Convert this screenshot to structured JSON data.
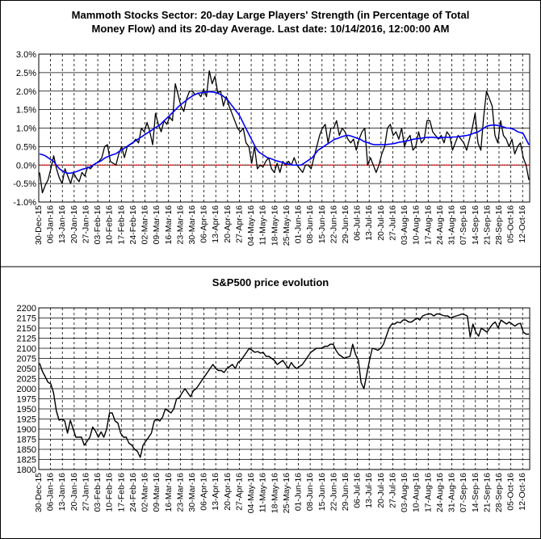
{
  "chart_data": [
    {
      "type": "line",
      "title_line1": "Mammoth Stocks Sector: 20-day Large Players' Strength (in Percentage of Total",
      "title_line2": "Money Flow) and its 20-day Average. Last date: 10/14/2016, 12:00:00 AM",
      "ylim": [
        -1.0,
        3.0
      ],
      "ytick_labels": [
        "3.0%",
        "2.5%",
        "2.0%",
        "1.5%",
        "1.0%",
        "0.5%",
        "0.0%",
        "-0.5%",
        "-1.0%"
      ],
      "xtick_labels": [
        "30-Dec-15",
        "06-Jan-16",
        "13-Jan-16",
        "20-Jan-16",
        "27-Jan-16",
        "03-Feb-16",
        "10-Feb-16",
        "17-Feb-16",
        "24-Feb-16",
        "02-Mar-16",
        "09-Mar-16",
        "16-Mar-16",
        "23-Mar-16",
        "30-Mar-16",
        "06-Apr-16",
        "13-Apr-16",
        "20-Apr-16",
        "27-Apr-16",
        "04-May-16",
        "11-May-16",
        "18-May-16",
        "25-May-16",
        "01-Jun-16",
        "08-Jun-16",
        "15-Jun-16",
        "22-Jun-16",
        "29-Jun-16",
        "06-Jul-16",
        "13-Jul-16",
        "20-Jul-16",
        "27-Jul-16",
        "03-Aug-16",
        "10-Aug-16",
        "17-Aug-16",
        "24-Aug-16",
        "31-Aug-16",
        "07-Sep-16",
        "14-Sep-16",
        "21-Sep-16",
        "28-Sep-16",
        "05-Oct-16",
        "12-Oct-16"
      ],
      "reference_line": 0.0,
      "series": [
        {
          "color": "#000000",
          "values": [
            -0.2,
            -0.75,
            -0.55,
            -0.4,
            -0.1,
            0.25,
            -0.1,
            -0.35,
            -0.5,
            -0.1,
            -0.3,
            -0.5,
            -0.2,
            -0.35,
            -0.45,
            -0.2,
            -0.3,
            -0.05,
            -0.1,
            0.0,
            0.05,
            0.1,
            0.2,
            0.5,
            0.55,
            0.1,
            0.05,
            0.0,
            0.3,
            0.5,
            0.2,
            0.5,
            0.55,
            0.6,
            0.7,
            0.6,
            1.0,
            0.9,
            1.15,
            0.9,
            0.55,
            1.4,
            1.1,
            0.9,
            1.2,
            1.1,
            1.3,
            1.2,
            2.2,
            1.9,
            1.6,
            1.45,
            1.8,
            2.0,
            2.0,
            1.9,
            1.95,
            1.85,
            2.05,
            1.85,
            2.55,
            2.2,
            2.4,
            1.95,
            2.0,
            1.6,
            1.85,
            1.6,
            1.4,
            1.2,
            1.0,
            0.9,
            1.0,
            0.6,
            0.5,
            0.05,
            0.5,
            -0.1,
            0.0,
            -0.05,
            0.1,
            0.2,
            -0.1,
            -0.2,
            0.05,
            -0.2,
            0.1,
            0.0,
            0.1,
            0.0,
            0.2,
            0.0,
            -0.1,
            -0.2,
            0.0,
            0.0,
            -0.1,
            0.2,
            0.5,
            0.8,
            1.0,
            1.1,
            0.6,
            1.0,
            1.0,
            1.2,
            0.8,
            1.0,
            0.9,
            0.7,
            0.6,
            0.7,
            0.4,
            0.7,
            0.9,
            1.0,
            0.0,
            0.2,
            0.0,
            -0.2,
            0.0,
            0.3,
            0.5,
            1.0,
            1.1,
            0.8,
            0.9,
            0.7,
            1.0,
            0.5,
            0.7,
            0.8,
            0.4,
            0.5,
            0.9,
            0.6,
            0.7,
            1.2,
            1.2,
            0.9,
            0.8,
            0.7,
            0.8,
            0.6,
            0.9,
            0.8,
            0.4,
            0.6,
            0.8,
            0.7,
            0.6,
            0.4,
            0.7,
            1.0,
            1.4,
            0.6,
            0.4,
            1.3,
            2.0,
            1.8,
            1.6,
            0.8,
            0.6,
            1.2,
            0.8,
            0.7,
            0.5,
            0.7,
            0.3,
            0.5,
            0.6,
            0.2,
            0.0,
            -0.4
          ]
        },
        {
          "color": "#0000FF",
          "values": [
            0.3,
            0.28,
            0.25,
            0.2,
            0.15,
            0.1,
            0.0,
            -0.1,
            -0.15,
            -0.2,
            -0.22,
            -0.22,
            -0.2,
            -0.18,
            -0.15,
            -0.12,
            -0.1,
            -0.08,
            -0.05,
            0.0,
            0.05,
            0.08,
            0.12,
            0.18,
            0.22,
            0.25,
            0.28,
            0.3,
            0.35,
            0.4,
            0.45,
            0.5,
            0.55,
            0.6,
            0.65,
            0.7,
            0.75,
            0.8,
            0.85,
            0.9,
            0.95,
            1.0,
            1.05,
            1.1,
            1.18,
            1.25,
            1.32,
            1.4,
            1.47,
            1.55,
            1.62,
            1.68,
            1.74,
            1.8,
            1.85,
            1.9,
            1.93,
            1.95,
            1.96,
            1.97,
            1.98,
            1.98,
            1.97,
            1.95,
            1.92,
            1.88,
            1.82,
            1.75,
            1.65,
            1.55,
            1.45,
            1.35,
            1.2,
            1.05,
            0.9,
            0.75,
            0.6,
            0.45,
            0.35,
            0.3,
            0.25,
            0.2,
            0.18,
            0.15,
            0.12,
            0.1,
            0.08,
            0.05,
            0.03,
            0.02,
            0.0,
            0.0,
            0.0,
            0.0,
            0.05,
            0.1,
            0.15,
            0.2,
            0.3,
            0.4,
            0.45,
            0.5,
            0.55,
            0.6,
            0.65,
            0.7,
            0.72,
            0.75,
            0.78,
            0.8,
            0.8,
            0.78,
            0.75,
            0.72,
            0.7,
            0.65,
            0.62,
            0.6,
            0.57,
            0.55,
            0.55,
            0.55,
            0.55,
            0.55,
            0.56,
            0.57,
            0.58,
            0.6,
            0.62,
            0.63,
            0.65,
            0.66,
            0.68,
            0.7,
            0.71,
            0.72,
            0.73,
            0.74,
            0.75,
            0.75,
            0.75,
            0.74,
            0.74,
            0.74,
            0.75,
            0.75,
            0.75,
            0.76,
            0.76,
            0.77,
            0.78,
            0.79,
            0.8,
            0.82,
            0.85,
            0.88,
            0.9,
            0.95,
            1.0,
            1.05,
            1.07,
            1.08,
            1.08,
            1.07,
            1.05,
            1.03,
            1.0,
            1.0,
            0.98,
            0.95,
            0.9,
            0.88,
            0.85,
            0.7,
            0.55
          ]
        }
      ]
    },
    {
      "type": "line",
      "title": "S&P500 price evolution",
      "ylim": [
        1800,
        2200
      ],
      "ytick_labels": [
        "2200",
        "2175",
        "2150",
        "2125",
        "2100",
        "2075",
        "2050",
        "2025",
        "2000",
        "1975",
        "1950",
        "1925",
        "1900",
        "1875",
        "1850",
        "1825",
        "1800"
      ],
      "xtick_labels": [
        "30-Dec-15",
        "06-Jan-16",
        "13-Jan-16",
        "20-Jan-16",
        "27-Jan-16",
        "03-Feb-16",
        "10-Feb-16",
        "17-Feb-16",
        "24-Feb-16",
        "02-Mar-16",
        "09-Mar-16",
        "16-Mar-16",
        "23-Mar-16",
        "30-Mar-16",
        "06-Apr-16",
        "13-Apr-16",
        "20-Apr-16",
        "27-Apr-16",
        "04-May-16",
        "11-May-16",
        "18-May-16",
        "25-May-16",
        "01-Jun-16",
        "08-Jun-16",
        "15-Jun-16",
        "22-Jun-16",
        "29-Jun-16",
        "06-Jul-16",
        "13-Jul-16",
        "20-Jul-16",
        "27-Jul-16",
        "03-Aug-16",
        "10-Aug-16",
        "17-Aug-16",
        "24-Aug-16",
        "31-Aug-16",
        "07-Sep-16",
        "14-Sep-16",
        "21-Sep-16",
        "28-Sep-16",
        "05-Oct-16",
        "12-Oct-16"
      ],
      "series": [
        {
          "color": "#000000",
          "values": [
            2063,
            2043,
            2030,
            2016,
            2012,
            1990,
            1945,
            1922,
            1925,
            1920,
            1890,
            1922,
            1900,
            1880,
            1880,
            1880,
            1860,
            1870,
            1880,
            1905,
            1895,
            1880,
            1893,
            1880,
            1900,
            1940,
            1940,
            1920,
            1915,
            1890,
            1880,
            1880,
            1865,
            1860,
            1850,
            1845,
            1830,
            1860,
            1870,
            1880,
            1890,
            1920,
            1925,
            1920,
            1930,
            1950,
            1945,
            1940,
            1950,
            1975,
            1978,
            1990,
            2000,
            1990,
            1980,
            1995,
            2000,
            2010,
            2020,
            2030,
            2040,
            2050,
            2060,
            2050,
            2045,
            2045,
            2040,
            2050,
            2055,
            2060,
            2050,
            2065,
            2070,
            2080,
            2090,
            2100,
            2095,
            2090,
            2092,
            2088,
            2090,
            2080,
            2080,
            2075,
            2070,
            2060,
            2065,
            2070,
            2060,
            2050,
            2065,
            2055,
            2050,
            2055,
            2060,
            2070,
            2080,
            2090,
            2095,
            2100,
            2100,
            2100,
            2105,
            2105,
            2110,
            2110,
            2095,
            2085,
            2080,
            2075,
            2078,
            2080,
            2110,
            2085,
            2070,
            2015,
            2000,
            2035,
            2070,
            2100,
            2098,
            2095,
            2100,
            2110,
            2130,
            2150,
            2160,
            2160,
            2165,
            2163,
            2170,
            2170,
            2165,
            2165,
            2170,
            2175,
            2170,
            2180,
            2183,
            2185,
            2185,
            2180,
            2185,
            2185,
            2182,
            2180,
            2180,
            2175,
            2178,
            2180,
            2182,
            2185,
            2183,
            2180,
            2128,
            2160,
            2140,
            2130,
            2150,
            2145,
            2140,
            2150,
            2160,
            2165,
            2150,
            2170,
            2165,
            2160,
            2165,
            2160,
            2155,
            2160,
            2162,
            2140,
            2135,
            2135
          ]
        }
      ]
    }
  ]
}
